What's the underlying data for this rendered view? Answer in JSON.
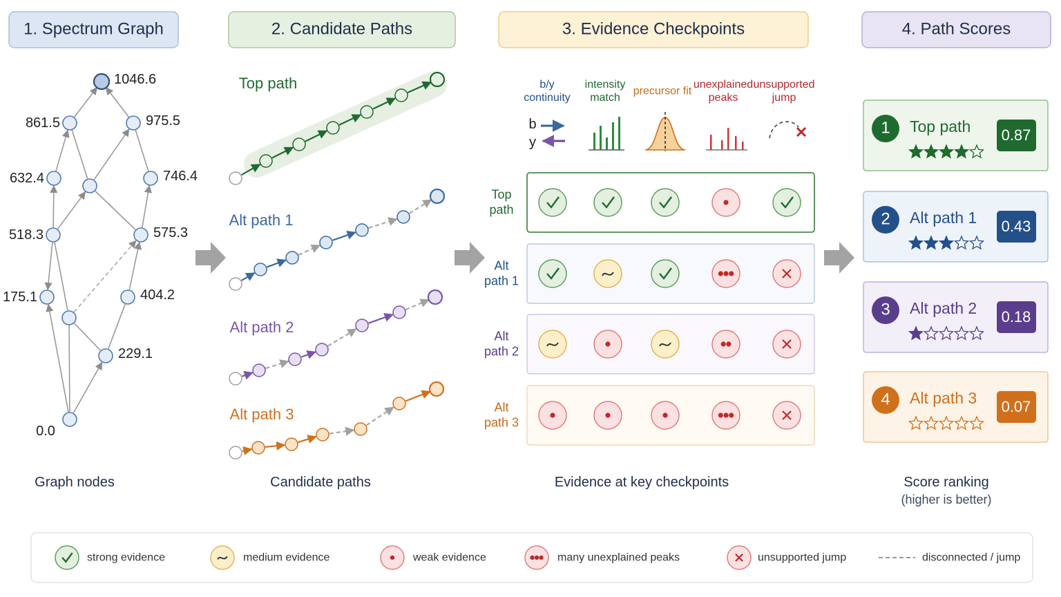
{
  "headers": [
    "1. Spectrum Graph",
    "2. Candidate Paths",
    "3. Evidence Checkpoints",
    "4. Path Scores"
  ],
  "graph": {
    "nodes": [
      "1046.6",
      "861.5",
      "975.5",
      "632.4",
      "746.4",
      "518.3",
      "575.3",
      "175.1",
      "404.2",
      "229.1",
      "0.0"
    ],
    "caption": "Graph nodes"
  },
  "candidates": {
    "paths": [
      "Top path",
      "Alt path 1",
      "Alt path 2",
      "Alt path 3"
    ],
    "caption": "Candidate paths"
  },
  "evidence": {
    "columns": [
      "b/y continuity",
      "intensity match",
      "precursor fit",
      "unexplained peaks",
      "unsupported jump"
    ],
    "b_label": "b",
    "y_label": "y",
    "rows": [
      {
        "label": "Top path",
        "cells": [
          "strong",
          "strong",
          "strong",
          "weak",
          "strong"
        ]
      },
      {
        "label": "Alt path 1",
        "cells": [
          "strong",
          "medium",
          "strong",
          "many",
          "jump"
        ]
      },
      {
        "label": "Alt path 2",
        "cells": [
          "medium",
          "weak",
          "medium",
          "several",
          "jump"
        ]
      },
      {
        "label": "Alt path 3",
        "cells": [
          "weak",
          "weak",
          "weak",
          "many",
          "jump"
        ]
      }
    ],
    "caption": "Evidence at key checkpoints"
  },
  "scores": {
    "items": [
      {
        "rank": "1",
        "name": "Top path",
        "score": "0.87",
        "stars": 4,
        "color": "#1f6a2f"
      },
      {
        "rank": "2",
        "name": "Alt path 1",
        "score": "0.43",
        "stars": 3,
        "color": "#24508a"
      },
      {
        "rank": "3",
        "name": "Alt path 2",
        "score": "0.18",
        "stars": 1,
        "color": "#5a3d8c"
      },
      {
        "rank": "4",
        "name": "Alt path 3",
        "score": "0.07",
        "stars": 0,
        "color": "#d0701c"
      }
    ],
    "caption": "Score ranking",
    "note": "(higher is better)"
  },
  "legend": [
    {
      "icon": "strong",
      "label": "strong evidence"
    },
    {
      "icon": "medium",
      "label": "medium evidence"
    },
    {
      "icon": "weak",
      "label": "weak evidence"
    },
    {
      "icon": "many",
      "label": "many unexplained peaks"
    },
    {
      "icon": "jump",
      "label": "unsupported jump"
    },
    {
      "icon": "dashed",
      "label": "disconnected / jump"
    }
  ]
}
